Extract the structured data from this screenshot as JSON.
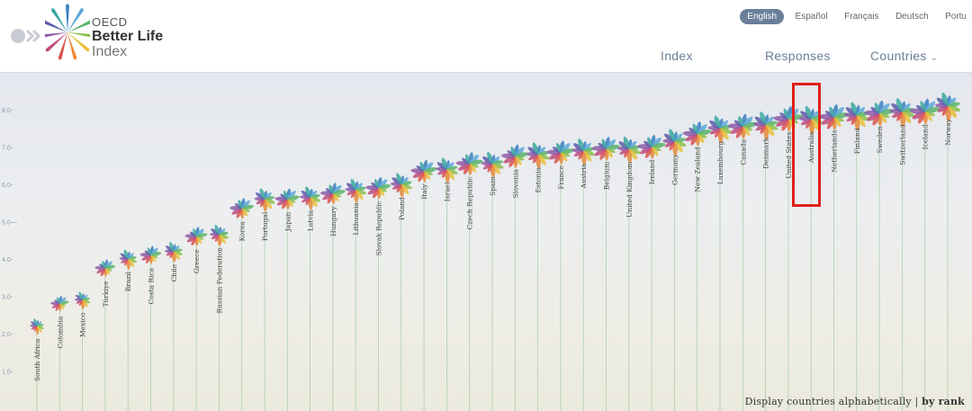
{
  "header": {
    "logo": {
      "oecd": "OECD",
      "better_life": "Better Life",
      "index": "Index"
    },
    "languages": [
      {
        "label": "English",
        "active": true
      },
      {
        "label": "Español",
        "active": false
      },
      {
        "label": "Français",
        "active": false
      },
      {
        "label": "Deutsch",
        "active": false
      },
      {
        "label": "Portu",
        "active": false
      }
    ],
    "nav": {
      "index": "Index",
      "responses": "Responses",
      "countries": "Countries"
    }
  },
  "chart_data": {
    "type": "scatter",
    "ytick_labels": [
      "1.0",
      "2.0",
      "3.0",
      "4.0",
      "5.0",
      "6.0",
      "7.0",
      "8.0"
    ],
    "ylim": [
      0.5,
      8.8
    ],
    "petal_colors": [
      "#3a7fc0",
      "#5aa8d8",
      "#58b36a",
      "#8dc04a",
      "#e8c13b",
      "#e88a3a",
      "#d9534f",
      "#c04a7a",
      "#8e5aa8",
      "#5a5aa8",
      "#3ba7a0"
    ],
    "countries": [
      {
        "name": "South Africa",
        "value": 2.2
      },
      {
        "name": "Colombia",
        "value": 2.8
      },
      {
        "name": "Mexico",
        "value": 2.9
      },
      {
        "name": "Türkiye",
        "value": 3.75
      },
      {
        "name": "Brazil",
        "value": 4.0
      },
      {
        "name": "Costa Rica",
        "value": 4.1
      },
      {
        "name": "Chile",
        "value": 4.2
      },
      {
        "name": "Greece",
        "value": 4.6
      },
      {
        "name": "Russian Federation",
        "value": 4.65
      },
      {
        "name": "Korea",
        "value": 5.35
      },
      {
        "name": "Portugal",
        "value": 5.6
      },
      {
        "name": "Japan",
        "value": 5.6
      },
      {
        "name": "Latvia",
        "value": 5.65
      },
      {
        "name": "Hungary",
        "value": 5.75
      },
      {
        "name": "Lithuania",
        "value": 5.85
      },
      {
        "name": "Slovak Republic",
        "value": 5.9
      },
      {
        "name": "Poland",
        "value": 6.0
      },
      {
        "name": "Italy",
        "value": 6.35
      },
      {
        "name": "Israel",
        "value": 6.4
      },
      {
        "name": "Czech Republic",
        "value": 6.55
      },
      {
        "name": "Spain",
        "value": 6.55
      },
      {
        "name": "Slovenia",
        "value": 6.75
      },
      {
        "name": "Estonia",
        "value": 6.8
      },
      {
        "name": "France",
        "value": 6.85
      },
      {
        "name": "Austria",
        "value": 6.9
      },
      {
        "name": "Belgium",
        "value": 6.95
      },
      {
        "name": "United Kingdom",
        "value": 6.95
      },
      {
        "name": "Ireland",
        "value": 7.0
      },
      {
        "name": "Germany",
        "value": 7.15
      },
      {
        "name": "New Zealand",
        "value": 7.35
      },
      {
        "name": "Luxembourg",
        "value": 7.5
      },
      {
        "name": "Canada",
        "value": 7.55
      },
      {
        "name": "Denmark",
        "value": 7.6
      },
      {
        "name": "United States",
        "value": 7.75
      },
      {
        "name": "Australia",
        "value": 7.75
      },
      {
        "name": "Netherlands",
        "value": 7.8
      },
      {
        "name": "Finland",
        "value": 7.85
      },
      {
        "name": "Sweden",
        "value": 7.9
      },
      {
        "name": "Switzerland",
        "value": 7.95
      },
      {
        "name": "Iceland",
        "value": 7.95
      },
      {
        "name": "Norway",
        "value": 8.1
      }
    ],
    "highlighted": "Australia"
  },
  "footer": {
    "alphabetical": "Display countries alphabetically",
    "separator": " | ",
    "by_rank": "by rank"
  }
}
